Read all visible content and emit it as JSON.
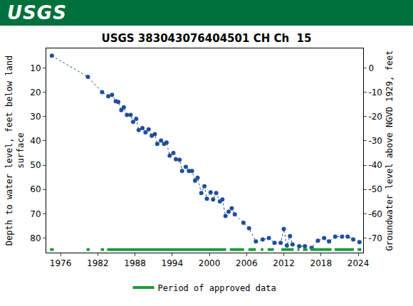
{
  "header": "USGS",
  "chart_data": {
    "type": "scatter",
    "title": "USGS 383043076404501 CH Ch  15",
    "y_label": [
      "Depth to water level, feet below land",
      "surface"
    ],
    "y2_label": "Groundwater level above NGVD 1929, feet",
    "x": [
      1974.6,
      1980.4,
      1982.7,
      1983.7,
      1984.3,
      1984.9,
      1985.3,
      1985.8,
      1986.2,
      1986.7,
      1987.3,
      1987.7,
      1988.2,
      1988.6,
      1989.2,
      1989.7,
      1990.2,
      1990.7,
      1991.2,
      1991.6,
      1992.2,
      1992.7,
      1993.1,
      1993.6,
      1994.2,
      1994.6,
      1995.2,
      1995.6,
      1996.2,
      1996.7,
      1997.2,
      1997.7,
      1998.1,
      1998.7,
      1999.2,
      1999.6,
      2000.2,
      2000.6,
      2001.1,
      2001.7,
      2002.1,
      2002.6,
      2003.1,
      2003.6,
      2004.1,
      2005.5,
      2006.4,
      2007.5,
      2008.6,
      2009.6,
      2010.5,
      2011.5,
      2012.0,
      2012.5,
      2013.0,
      2013.4,
      2014.5,
      2015.4,
      2016.5,
      2017.5,
      2018.5,
      2019.3,
      2020.3,
      2021.4,
      2022.3,
      2023.2,
      2024.2
    ],
    "values": [
      5,
      13.7,
      20.0,
      21.7,
      21.1,
      23.7,
      24,
      27.4,
      26.2,
      29.4,
      29.4,
      32.2,
      31,
      35.6,
      34.8,
      36.5,
      35.3,
      37.9,
      37.3,
      41.3,
      39.9,
      41.3,
      40.7,
      46.1,
      45,
      47.6,
      47.8,
      52.4,
      50.7,
      52.4,
      52.4,
      56.4,
      55.2,
      61.5,
      58.7,
      63.8,
      61.2,
      64.1,
      61.5,
      64.9,
      64.1,
      70.9,
      69.2,
      67.8,
      70.3,
      73.7,
      76,
      81.4,
      80.6,
      80,
      82,
      82,
      76.3,
      83.1,
      79.2,
      82.6,
      83.4,
      83.4,
      84,
      81.1,
      80,
      81.4,
      79.4,
      79.4,
      79.4,
      80.6,
      81.7
    ],
    "color": "#1f4e9a",
    "marker": "circle",
    "line_style": "dotted",
    "xlim": [
      1973.7,
      2024.8
    ],
    "xticks": [
      1976,
      1982,
      1988,
      1994,
      2000,
      2006,
      2012,
      2018,
      2024
    ],
    "ylim": [
      86,
      2
    ],
    "yticks": [
      10,
      20,
      30,
      40,
      50,
      60,
      70,
      80
    ],
    "y2lim": [
      -76,
      8
    ],
    "y2ticks": [
      0,
      -10,
      -20,
      -30,
      -40,
      -50,
      -60,
      -70
    ],
    "grid": false,
    "legend": "bottom",
    "approved_periods": {
      "name": "Period of approved data",
      "color": "#1a9c3c",
      "ranges": [
        [
          1974.3,
          1974.9
        ],
        [
          1980.2,
          1980.7
        ],
        [
          1982.5,
          1983.0
        ],
        [
          1983.5,
          2002.7
        ],
        [
          2003.3,
          2005.6
        ],
        [
          2006.3,
          2007.5
        ],
        [
          2008.3,
          2008.7
        ],
        [
          2009.4,
          2010.4
        ],
        [
          2011.6,
          2013.6
        ],
        [
          2014.2,
          2014.5
        ],
        [
          2015.1,
          2015.8
        ],
        [
          2016.3,
          2019.7
        ],
        [
          2020.2,
          2023.3
        ],
        [
          2023.9,
          2024.5
        ]
      ]
    }
  }
}
